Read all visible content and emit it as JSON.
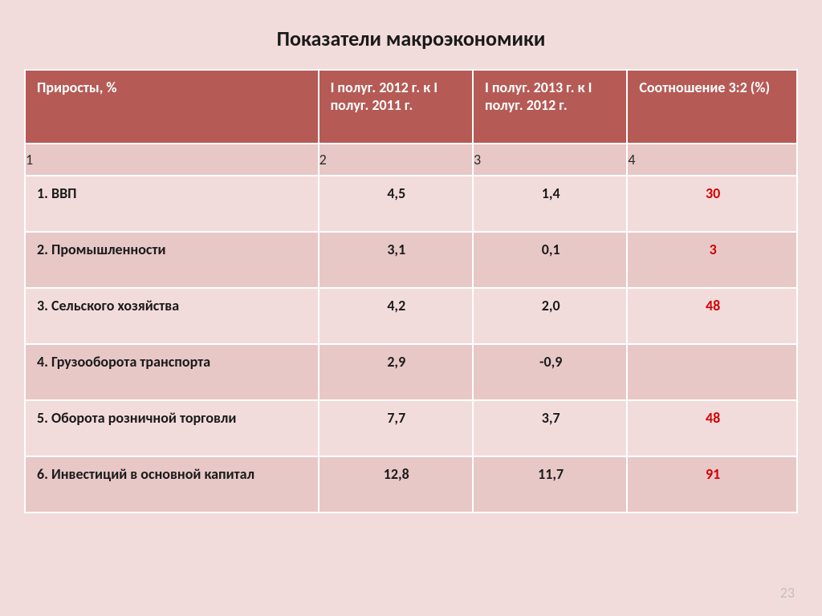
{
  "slide": {
    "background_color": "#f2dcdb",
    "title": "Показатели макроэкономики",
    "title_fontsize": 26,
    "title_color": "#1a1a1a",
    "page_number": "23"
  },
  "table": {
    "border_color": "#ffffff",
    "header_bg": "#b65a55",
    "header_color": "#ffffff",
    "numrow_bg": "#e7c8c7",
    "numrow_color": "#2a2a2a",
    "row_odd_bg": "#f2dcdb",
    "row_even_bg": "#e7c8c7",
    "cell_color": "#1a1a1a",
    "ratio_color": "#d20000",
    "fontsize": 18,
    "col_widths_pct": [
      38,
      20,
      20,
      22
    ],
    "columns": [
      "Приросты, %",
      "I полуг. 2012 г. к I полуг. 2011 г.",
      "I полуг. 2013 г. к I полуг. 2012 г.",
      "Соотношение 3:2 (%)"
    ],
    "number_row": [
      "1",
      "2",
      "3",
      "4"
    ],
    "rows": [
      {
        "label": "1.   ВВП",
        "c2": "4,5",
        "c3": "1,4",
        "c4": "30"
      },
      {
        "label": "2. Промышленности",
        "c2": "3,1",
        "c3": "0,1",
        "c4": "3"
      },
      {
        "label": "3. Сельского хозяйства",
        "c2": "4,2",
        "c3": "2,0",
        "c4": "48"
      },
      {
        "label": "4. Грузооборота транспорта",
        "c2": "2,9",
        "c3": "-0,9",
        "c4": ""
      },
      {
        "label": "5. Оборота розничной торговли",
        "c2": "7,7",
        "c3": "3,7",
        "c4": "48"
      },
      {
        "label": "6. Инвестиций в основной капитал",
        "c2": "12,8",
        "c3": "11,7",
        "c4": "91"
      }
    ]
  }
}
